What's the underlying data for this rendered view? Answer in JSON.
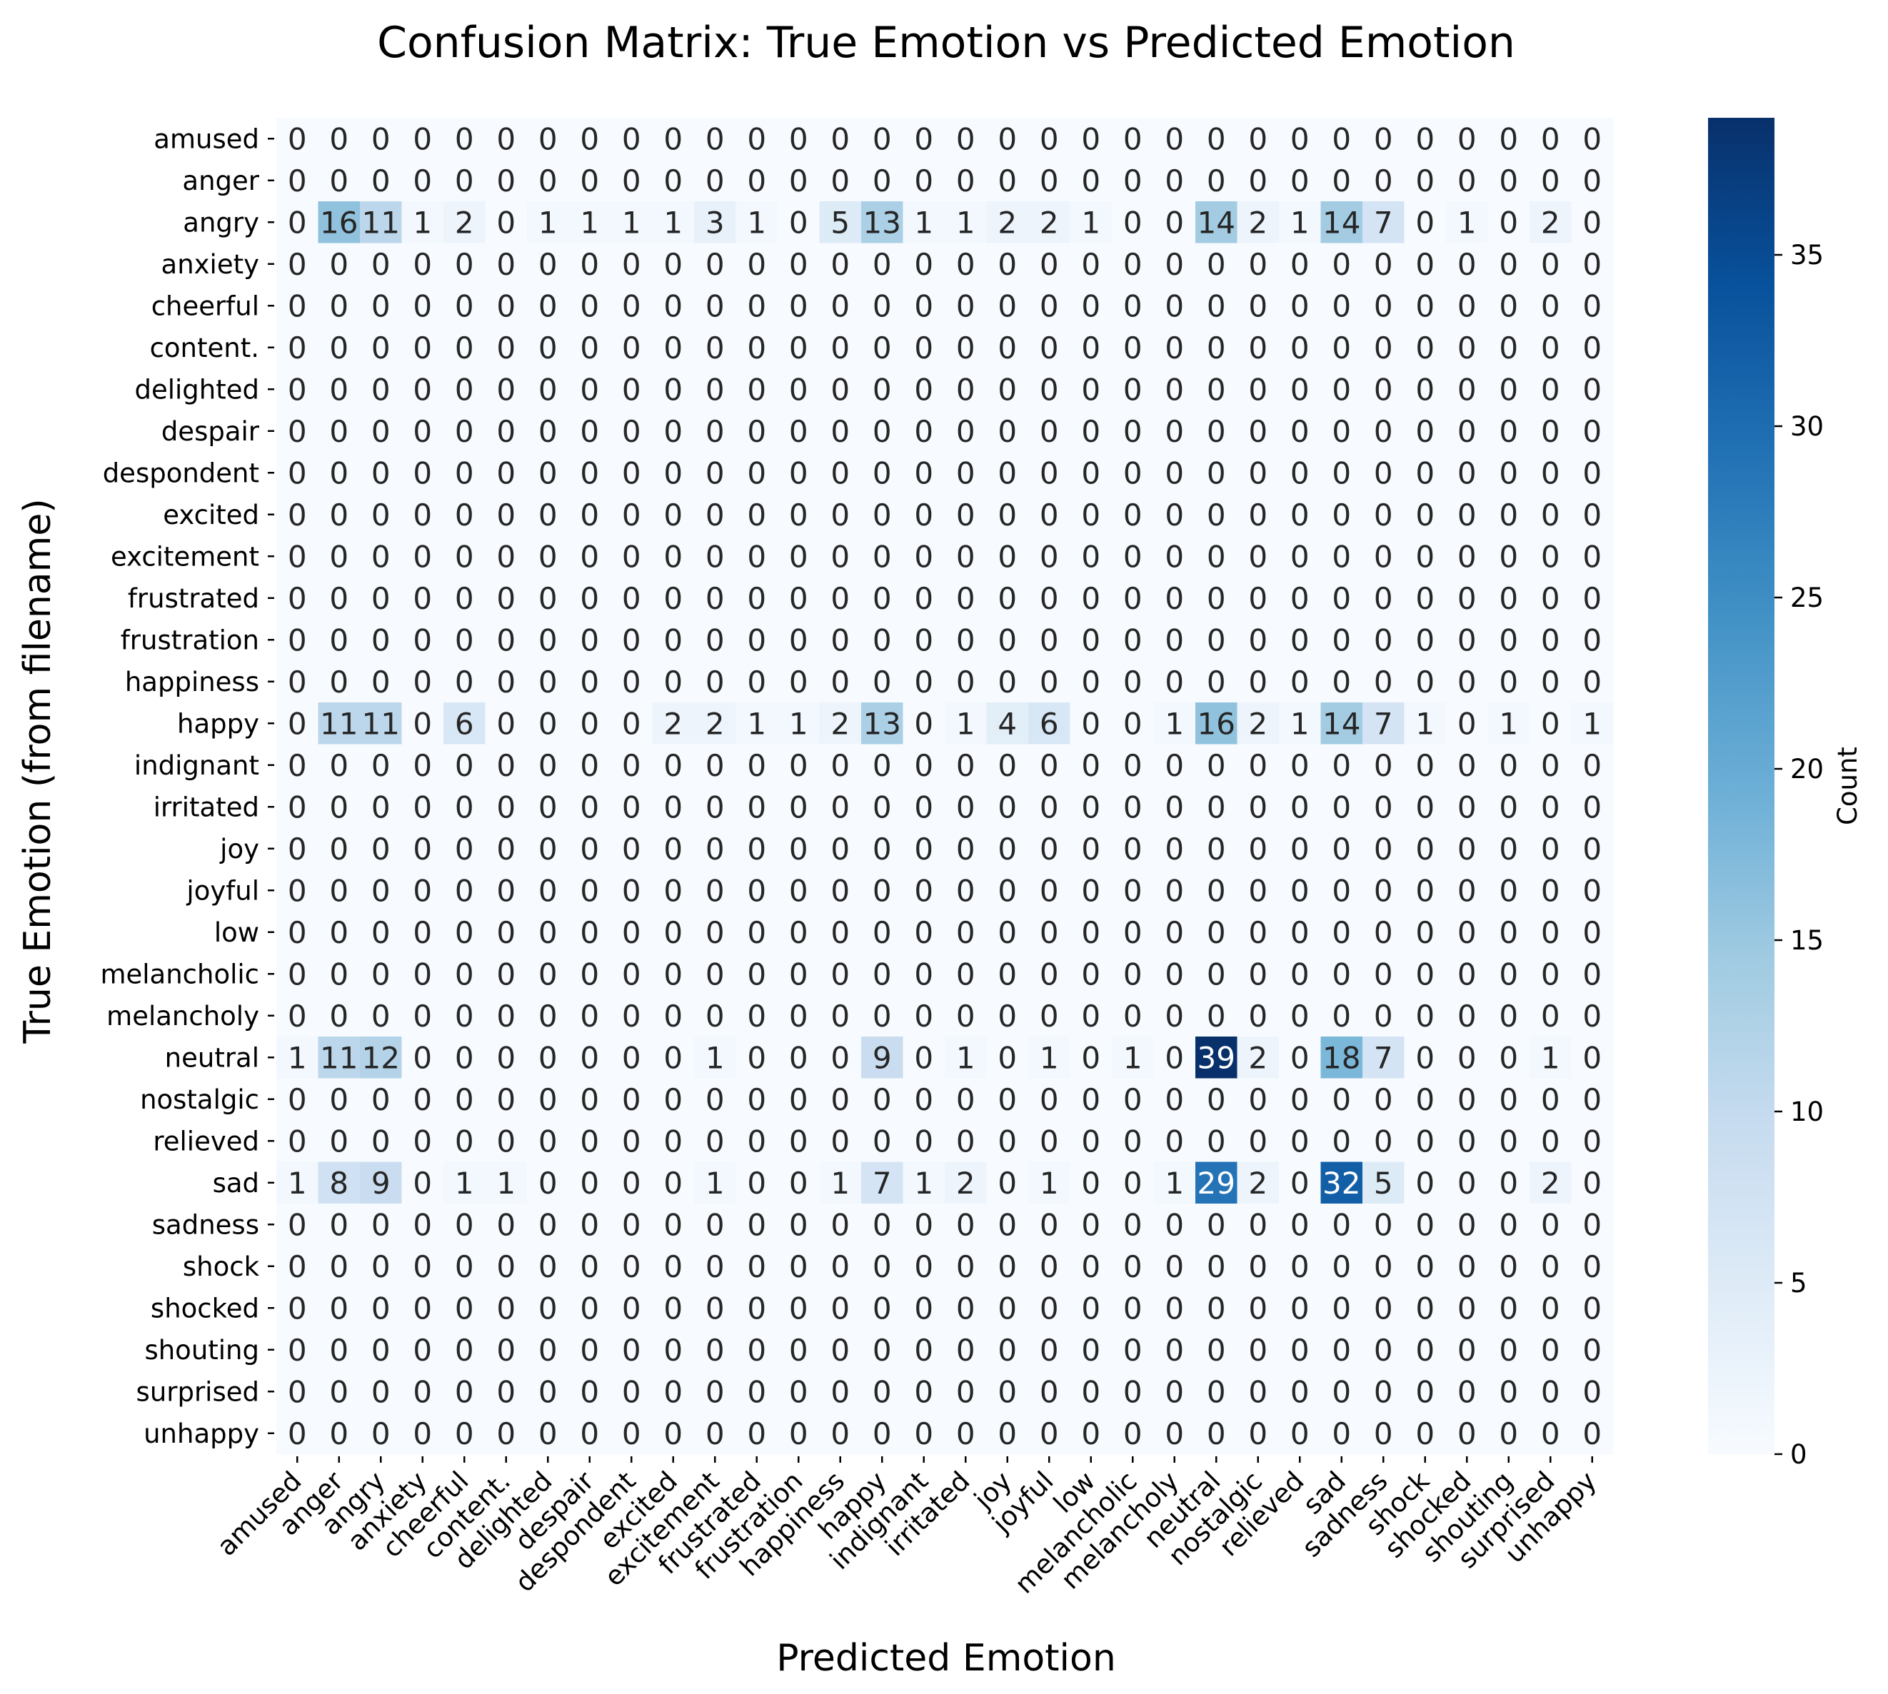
{
  "chart_data": {
    "type": "heatmap",
    "title": "Confusion Matrix: True Emotion vs Predicted Emotion",
    "xlabel": "Predicted Emotion",
    "ylabel": "True Emotion (from filename)",
    "labels": [
      "amused",
      "anger",
      "angry",
      "anxiety",
      "cheerful",
      "content.",
      "delighted",
      "despair",
      "despondent",
      "excited",
      "excitement",
      "frustrated",
      "frustration",
      "happiness",
      "happy",
      "indignant",
      "irritated",
      "joy",
      "joyful",
      "low",
      "melancholic",
      "melancholy",
      "neutral",
      "nostalgic",
      "relieved",
      "sad",
      "sadness",
      "shock",
      "shocked",
      "shouting",
      "surprised",
      "unhappy"
    ],
    "nonzero_rows": {
      "angry": [
        0,
        16,
        11,
        1,
        2,
        0,
        1,
        1,
        1,
        1,
        3,
        1,
        0,
        5,
        13,
        1,
        1,
        2,
        2,
        1,
        0,
        0,
        14,
        2,
        1,
        14,
        7,
        0,
        1,
        0,
        2,
        0
      ],
      "happy": [
        0,
        11,
        11,
        0,
        6,
        0,
        0,
        0,
        0,
        2,
        2,
        1,
        1,
        2,
        13,
        0,
        1,
        4,
        6,
        0,
        0,
        1,
        16,
        2,
        1,
        14,
        7,
        1,
        0,
        1,
        0,
        1
      ],
      "neutral": [
        1,
        11,
        12,
        0,
        0,
        0,
        0,
        0,
        0,
        0,
        1,
        0,
        0,
        0,
        9,
        0,
        1,
        0,
        1,
        0,
        1,
        0,
        39,
        2,
        0,
        18,
        7,
        0,
        0,
        0,
        1,
        0
      ],
      "sad": [
        1,
        8,
        9,
        0,
        1,
        1,
        0,
        0,
        0,
        0,
        1,
        0,
        0,
        1,
        7,
        1,
        2,
        0,
        1,
        0,
        0,
        1,
        29,
        2,
        0,
        32,
        5,
        0,
        0,
        0,
        2,
        0
      ]
    },
    "colorbar": {
      "label": "Count",
      "min": 0,
      "max": 39,
      "ticks": [
        0,
        5,
        10,
        15,
        20,
        25,
        30,
        35
      ]
    },
    "colormap": "Blues",
    "colors": {
      "low": "#f7fbff",
      "high": "#08306b"
    }
  }
}
